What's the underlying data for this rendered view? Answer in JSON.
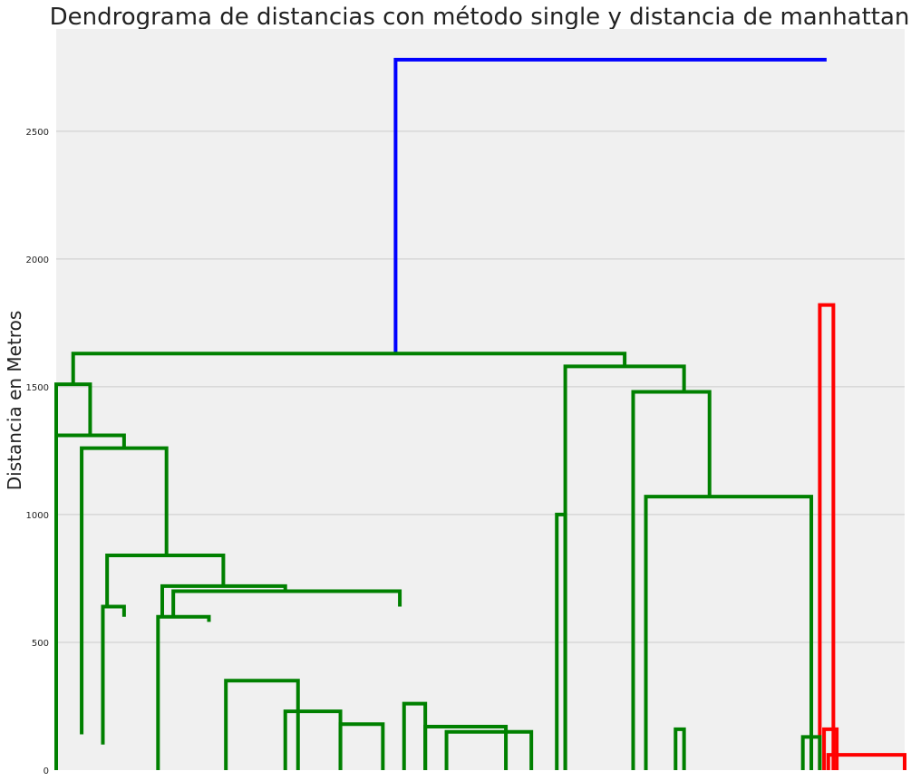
{
  "chart_data": {
    "type": "dendrogram",
    "title": "Dendrograma de distancias con método single y distancia de manhattan",
    "xlabel": "",
    "ylabel": "Distancia en Metros",
    "ylim": [
      0,
      2900
    ],
    "yticks": [
      0,
      500,
      1000,
      1500,
      2000,
      2500
    ],
    "xlim": [
      0,
      10
    ],
    "grid": "horizontal",
    "background": "#f0f0f0",
    "colors": {
      "green": "#008000",
      "red": "#ff0000",
      "blue": "#0000ff",
      "grid": "#cbcbcb"
    },
    "links": [
      {
        "x": [
          4.0,
          9.08
        ],
        "y": [
          1630,
          2780
        ],
        "join": 2780,
        "color": "blue"
      },
      {
        "x": [
          9.0,
          9.16
        ],
        "y": [
          0,
          0
        ],
        "join": 1820,
        "color": "red"
      },
      {
        "x": [
          0.2,
          6.7
        ],
        "y": [
          1510,
          1580
        ],
        "join": 1630,
        "color": "green"
      },
      {
        "x": [
          0.0,
          0.4
        ],
        "y": [
          0,
          1310
        ],
        "join": 1510,
        "color": "green"
      },
      {
        "x": [
          0.0,
          0.8
        ],
        "y": [
          0,
          1260
        ],
        "join": 1310,
        "color": "green"
      },
      {
        "x": [
          0.3,
          1.3
        ],
        "y": [
          140,
          840
        ],
        "join": 1260,
        "color": "green"
      },
      {
        "x": [
          0.6,
          1.97
        ],
        "y": [
          640,
          720
        ],
        "join": 840,
        "color": "green"
      },
      {
        "x": [
          0.55,
          0.8
        ],
        "y": [
          100,
          600
        ],
        "join": 640,
        "color": "green"
      },
      {
        "x": [
          1.25,
          2.7
        ],
        "y": [
          600,
          700
        ],
        "join": 720,
        "color": "green"
      },
      {
        "x": [
          1.38,
          4.05
        ],
        "y": [
          600,
          640
        ],
        "join": 700,
        "color": "green"
      },
      {
        "x": [
          1.2,
          1.8
        ],
        "y": [
          0,
          580
        ],
        "join": 600,
        "color": "green"
      },
      {
        "x": [
          6.0,
          7.4
        ],
        "y": [
          0,
          1480
        ],
        "join": 1580,
        "color": "green"
      },
      {
        "x": [
          6.8,
          7.7
        ],
        "y": [
          0,
          1070
        ],
        "join": 1480,
        "color": "green"
      },
      {
        "x": [
          6.95,
          8.9
        ],
        "y": [
          0,
          0
        ],
        "join": 1070,
        "color": "green"
      },
      {
        "x": [
          8.8,
          9.0
        ],
        "y": [
          0,
          0
        ],
        "join": 130,
        "color": "green"
      },
      {
        "x": [
          2.0,
          2.85
        ],
        "y": [
          0,
          0
        ],
        "join": 350,
        "color": "green"
      },
      {
        "x": [
          2.7,
          3.35
        ],
        "y": [
          0,
          0
        ],
        "join": 230,
        "color": "green"
      },
      {
        "x": [
          3.35,
          3.85
        ],
        "y": [
          0,
          0
        ],
        "join": 180,
        "color": "green"
      },
      {
        "x": [
          4.1,
          4.35
        ],
        "y": [
          0,
          0
        ],
        "join": 260,
        "color": "green"
      },
      {
        "x": [
          4.35,
          5.3
        ],
        "y": [
          0,
          0
        ],
        "join": 170,
        "color": "green"
      },
      {
        "x": [
          4.6,
          5.6
        ],
        "y": [
          0,
          0
        ],
        "join": 150,
        "color": "green"
      },
      {
        "x": [
          5.9,
          6.0
        ],
        "y": [
          0,
          0
        ],
        "join": 1000,
        "color": "green"
      },
      {
        "x": [
          7.3,
          7.4
        ],
        "y": [
          0,
          0
        ],
        "join": 160,
        "color": "green"
      },
      {
        "x": [
          9.05,
          9.2
        ],
        "y": [
          0,
          0
        ],
        "join": 160,
        "color": "red"
      },
      {
        "x": [
          9.1,
          10.0
        ],
        "y": [
          0,
          0
        ],
        "join": 60,
        "color": "red"
      }
    ]
  }
}
